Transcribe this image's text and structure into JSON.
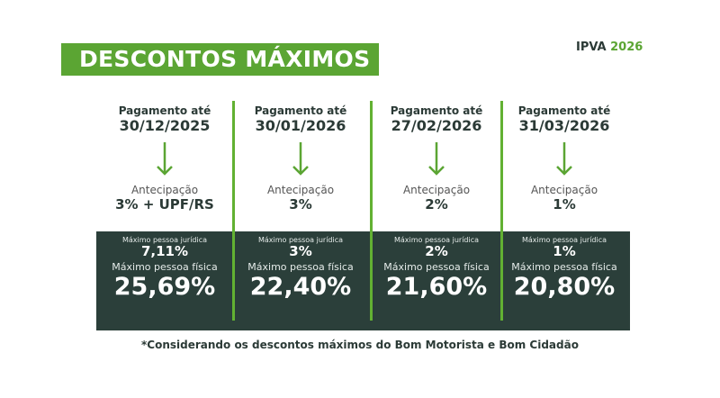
{
  "title": "DESCONTOS MÁXIMOS",
  "ipva_label": "IPVA",
  "ipva_year": "2026",
  "colors": {
    "green": "#5ba533",
    "dark": "#2b3f3a"
  },
  "columns": [
    {
      "label": "Pagamento até",
      "date": "30/12/2025",
      "antecipacao_label": "Antecipação",
      "antecipacao": "3% + UPF/RS",
      "pj_label": "Máximo pessoa jurídica",
      "pj": "7,11%",
      "pf_label": "Máximo pessoa física",
      "pf": "25,69%"
    },
    {
      "label": "Pagamento até",
      "date": "30/01/2026",
      "antecipacao_label": "Antecipação",
      "antecipacao": "3%",
      "pj_label": "Máximo pessoa jurídica",
      "pj": "3%",
      "pf_label": "Máximo pessoa física",
      "pf": "22,40%"
    },
    {
      "label": "Pagamento até",
      "date": "27/02/2026",
      "antecipacao_label": "Antecipação",
      "antecipacao": "2%",
      "pj_label": "Máximo pessoa jurídica",
      "pj": "2%",
      "pf_label": "Máximo pessoa física",
      "pf": "21,60%"
    },
    {
      "label": "Pagamento até",
      "date": "31/03/2026",
      "antecipacao_label": "Antecipação",
      "antecipacao": "1%",
      "pj_label": "Máximo pessoa jurídica",
      "pj": "1%",
      "pf_label": "Máximo pessoa física",
      "pf": "20,80%"
    }
  ],
  "footnote": "*Considerando os descontos máximos do Bom Motorista e Bom Cidadão"
}
